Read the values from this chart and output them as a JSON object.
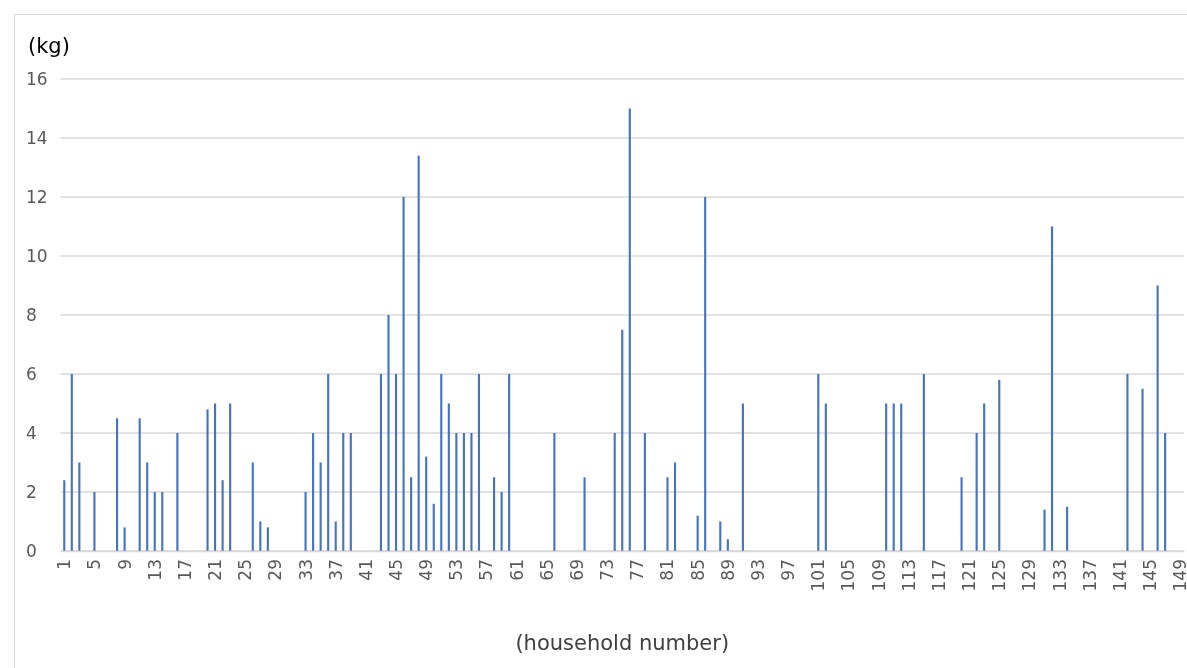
{
  "chart_data": {
    "type": "bar",
    "ylabel": "(kg)",
    "xlabel": "(household number)",
    "color": "#4472c4",
    "grid": "y",
    "ylim": [
      0,
      16
    ],
    "yticks": [
      0,
      2,
      4,
      6,
      8,
      10,
      12,
      14,
      16
    ],
    "categories": [
      "1",
      null,
      null,
      null,
      "5",
      null,
      null,
      null,
      "9",
      null,
      null,
      null,
      "13",
      null,
      null,
      null,
      "17",
      null,
      null,
      null,
      "21",
      null,
      null,
      null,
      "25",
      null,
      null,
      null,
      "29",
      null,
      null,
      null,
      "33",
      null,
      null,
      null,
      "37",
      null,
      null,
      null,
      "41",
      null,
      null,
      null,
      "45",
      null,
      null,
      null,
      "49",
      null,
      null,
      null,
      "53",
      null,
      null,
      null,
      "57",
      null,
      null,
      null,
      "61",
      null,
      null,
      null,
      "65",
      null,
      null,
      null,
      "69",
      null,
      null,
      null,
      "73",
      null,
      null,
      null,
      "77",
      null,
      null,
      null,
      "81",
      null,
      null,
      null,
      "85",
      null,
      null,
      null,
      "89",
      null,
      null,
      null,
      "93",
      null,
      null,
      null,
      "97",
      null,
      null,
      null,
      "101",
      null,
      null,
      null,
      "105",
      null,
      null,
      null,
      "109",
      null,
      null,
      null,
      "113",
      null,
      null,
      null,
      "117",
      null,
      null,
      null,
      "121",
      null,
      null,
      null,
      "125",
      null,
      null,
      null,
      "129",
      null,
      null,
      null,
      "133",
      null,
      null,
      null,
      "137",
      null,
      null,
      null,
      "141",
      null,
      null,
      null,
      "145",
      null,
      null,
      null,
      "149"
    ],
    "values": [
      2.4,
      6,
      3,
      0,
      2,
      0,
      0,
      4.5,
      0.8,
      0,
      4.5,
      3,
      2,
      2,
      0,
      4,
      0,
      0,
      0,
      4.8,
      5,
      2.4,
      5,
      0,
      0,
      3,
      1,
      0.8,
      0,
      0,
      0,
      0,
      2,
      4,
      3,
      6,
      1,
      4,
      4,
      0,
      0,
      0,
      6,
      8,
      6,
      12,
      2.5,
      13.4,
      3.2,
      1.6,
      6,
      5,
      4,
      4,
      4,
      6,
      0,
      2.5,
      2,
      6,
      0,
      0,
      0,
      0,
      0,
      4,
      0,
      0,
      0,
      2.5,
      0,
      0,
      0,
      4,
      7.5,
      15,
      0,
      4,
      0,
      0,
      2.5,
      3,
      0,
      0,
      1.2,
      12,
      0,
      1,
      0.4,
      0,
      5,
      0,
      0,
      0,
      0,
      0,
      0,
      0,
      0,
      0,
      6,
      5,
      0,
      0,
      0,
      0,
      0,
      0,
      0,
      5,
      5,
      5,
      0,
      0,
      6,
      0,
      0,
      0,
      0,
      2.5,
      0,
      4,
      5,
      0,
      5.8,
      0,
      0,
      0,
      0,
      0,
      1.4,
      11,
      0,
      1.5,
      0,
      0,
      0,
      0,
      0,
      0,
      0,
      6,
      0,
      5.5,
      0,
      9,
      4,
      0,
      0
    ]
  }
}
